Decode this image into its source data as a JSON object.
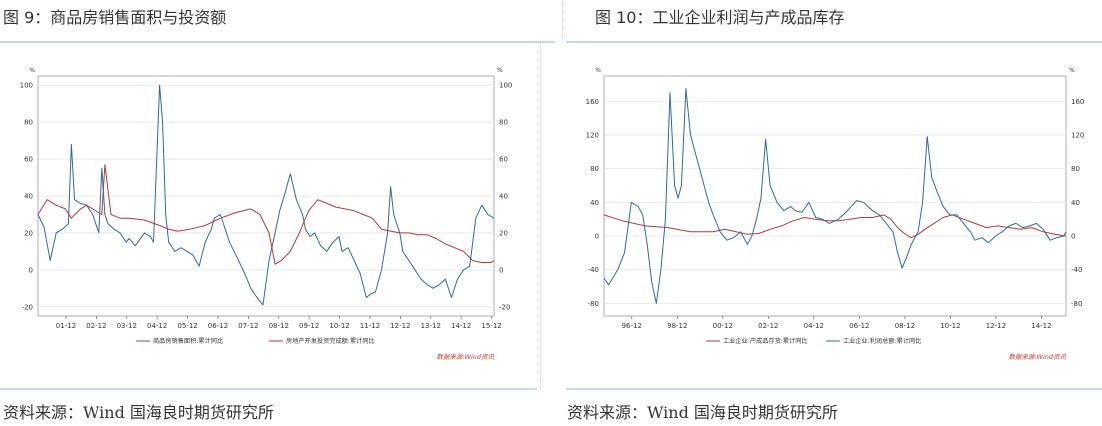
{
  "panels": [
    {
      "title": "图 9：商品房销售面积与投资额",
      "source": "资料来源：Wind 国海良时期货研究所"
    },
    {
      "title": "图 10：工业企业利润与产成品库存",
      "source": "资料来源：Wind 国海良时期货研究所"
    }
  ],
  "chart_data": [
    {
      "type": "line",
      "unit_left": "%",
      "unit_right": "%",
      "xlim": [
        2001.0,
        2016.0
      ],
      "ylim": [
        -25,
        105
      ],
      "yticks": [
        -20,
        0,
        20,
        40,
        60,
        80,
        100
      ],
      "xtick_labels": [
        "01-12",
        "02-12",
        "03-12",
        "04-12",
        "05-12",
        "06-12",
        "07-12",
        "08-12",
        "09-12",
        "10-12",
        "11-12",
        "12-12",
        "13-12",
        "14-12",
        "15-12"
      ],
      "xtick_values": [
        2001.92,
        2002.92,
        2003.92,
        2004.92,
        2005.92,
        2006.92,
        2007.92,
        2008.92,
        2009.92,
        2010.92,
        2011.92,
        2012.92,
        2013.92,
        2014.92,
        2015.92
      ],
      "legend_position": "bottom",
      "watermark": "数据来源:Wind资讯",
      "series": [
        {
          "name": "商品房销售面积:累计同比",
          "color": "#2e6d8e",
          "x": [
            2001.0,
            2001.2,
            2001.4,
            2001.6,
            2001.8,
            2002.0,
            2002.1,
            2002.2,
            2002.4,
            2002.6,
            2002.8,
            2003.0,
            2003.1,
            2003.2,
            2003.3,
            2003.5,
            2003.7,
            2003.9,
            2004.0,
            2004.2,
            2004.5,
            2004.7,
            2004.8,
            2005.0,
            2005.1,
            2005.2,
            2005.3,
            2005.5,
            2005.7,
            2005.9,
            2006.1,
            2006.3,
            2006.5,
            2006.7,
            2006.8,
            2007.0,
            2007.3,
            2007.6,
            2007.8,
            2008.0,
            2008.2,
            2008.4,
            2008.6,
            2008.8,
            2008.95,
            2009.1,
            2009.3,
            2009.5,
            2009.7,
            2009.8,
            2009.95,
            2010.1,
            2010.3,
            2010.5,
            2010.7,
            2010.9,
            2011.0,
            2011.2,
            2011.4,
            2011.6,
            2011.8,
            2011.95,
            2012.1,
            2012.3,
            2012.5,
            2012.6,
            2012.7,
            2012.8,
            2012.9,
            2013.0,
            2013.2,
            2013.4,
            2013.6,
            2013.8,
            2014.0,
            2014.2,
            2014.4,
            2014.6,
            2014.8,
            2015.0,
            2015.2,
            2015.4,
            2015.6,
            2015.8,
            2016.0
          ],
          "y": [
            30,
            23,
            5,
            20,
            22,
            25,
            68,
            38,
            36,
            35,
            30,
            20,
            55,
            30,
            25,
            22,
            20,
            15,
            17,
            13,
            20,
            18,
            15,
            100,
            80,
            30,
            15,
            10,
            12,
            10,
            8,
            2,
            15,
            22,
            28,
            30,
            15,
            5,
            -2,
            -10,
            -15,
            -19,
            5,
            20,
            32,
            40,
            52,
            38,
            30,
            22,
            18,
            20,
            13,
            10,
            15,
            18,
            10,
            12,
            5,
            -2,
            -15,
            -13,
            -12,
            0,
            20,
            45,
            30,
            25,
            20,
            10,
            5,
            0,
            -5,
            -8,
            -10,
            -8,
            -5,
            -15,
            -5,
            0,
            2,
            28,
            35,
            30,
            28
          ]
        },
        {
          "name": "房地产开发投资完成额:累计同比",
          "color": "#b23a3a",
          "x": [
            2001.0,
            2001.3,
            2001.6,
            2001.9,
            2002.1,
            2002.4,
            2002.6,
            2002.9,
            2003.1,
            2003.2,
            2003.4,
            2003.7,
            2004.0,
            2004.5,
            2005.0,
            2005.3,
            2005.6,
            2006.0,
            2006.5,
            2007.0,
            2007.5,
            2008.0,
            2008.3,
            2008.6,
            2008.8,
            2009.0,
            2009.3,
            2009.6,
            2009.9,
            2010.2,
            2010.5,
            2010.8,
            2011.1,
            2011.4,
            2011.7,
            2012.0,
            2012.3,
            2012.6,
            2012.9,
            2013.2,
            2013.5,
            2013.8,
            2014.1,
            2014.4,
            2014.7,
            2015.0,
            2015.3,
            2015.6,
            2015.9,
            2016.0
          ],
          "y": [
            30,
            38,
            35,
            33,
            28,
            33,
            35,
            32,
            30,
            57,
            30,
            28,
            28,
            27,
            24,
            22,
            21,
            22,
            24,
            28,
            31,
            33,
            30,
            20,
            3,
            5,
            10,
            20,
            32,
            38,
            36,
            34,
            33,
            32,
            30,
            28,
            22,
            21,
            20,
            20,
            19,
            19,
            17,
            14,
            12,
            10,
            5,
            4,
            4,
            5
          ]
        }
      ]
    },
    {
      "type": "line",
      "unit_left": "%",
      "unit_right": "%",
      "xlim": [
        1995.7,
        2016.0
      ],
      "ylim": [
        -95,
        190
      ],
      "yticks": [
        -80,
        -40,
        0,
        40,
        80,
        120,
        160
      ],
      "xtick_labels": [
        "96-12",
        "98-12",
        "00-12",
        "02-12",
        "04-12",
        "06-12",
        "08-12",
        "10-12",
        "12-12",
        "14-12"
      ],
      "xtick_values": [
        1996.92,
        1998.92,
        2000.92,
        2002.92,
        2004.92,
        2006.92,
        2008.92,
        2010.92,
        2012.92,
        2014.92
      ],
      "legend_position": "bottom",
      "watermark": "数据来源:Wind资讯",
      "series": [
        {
          "name": "工业企业:产成品存货:累计同比",
          "color": "#b23a3a",
          "x": [
            1995.7,
            1996.5,
            1997.5,
            1998.5,
            1999.5,
            2000.5,
            2001.0,
            2001.5,
            2002.0,
            2002.5,
            2003.0,
            2003.5,
            2004.0,
            2004.5,
            2005.0,
            2005.5,
            2006.0,
            2006.5,
            2007.0,
            2007.5,
            2008.0,
            2008.3,
            2008.6,
            2008.9,
            2009.2,
            2009.5,
            2009.8,
            2010.2,
            2010.6,
            2011.0,
            2011.5,
            2012.0,
            2012.5,
            2013.0,
            2013.5,
            2014.0,
            2014.5,
            2015.0,
            2015.5,
            2016.0
          ],
          "y": [
            25,
            18,
            12,
            10,
            5,
            5,
            8,
            5,
            2,
            3,
            8,
            12,
            18,
            22,
            20,
            18,
            18,
            20,
            22,
            22,
            25,
            20,
            10,
            3,
            -2,
            2,
            8,
            15,
            22,
            25,
            20,
            15,
            10,
            12,
            10,
            8,
            10,
            5,
            2,
            0
          ]
        },
        {
          "name": "工业企业:利润总额:累计同比",
          "color": "#2e6d8e",
          "x": [
            1995.7,
            1995.9,
            1996.3,
            1996.6,
            1996.9,
            1997.2,
            1997.4,
            1997.6,
            1997.8,
            1998.0,
            1998.2,
            1998.4,
            1998.6,
            1998.8,
            1998.95,
            1999.1,
            1999.3,
            1999.5,
            1999.7,
            1999.9,
            2000.1,
            2000.3,
            2000.5,
            2000.8,
            2001.1,
            2001.4,
            2001.7,
            2002.0,
            2002.2,
            2002.4,
            2002.6,
            2002.8,
            2003.0,
            2003.3,
            2003.6,
            2003.9,
            2004.1,
            2004.4,
            2004.7,
            2005.0,
            2005.3,
            2005.6,
            2006.0,
            2006.4,
            2006.8,
            2007.1,
            2007.5,
            2007.8,
            2008.1,
            2008.4,
            2008.6,
            2008.8,
            2009.0,
            2009.2,
            2009.5,
            2009.7,
            2009.9,
            2010.1,
            2010.3,
            2010.6,
            2010.9,
            2011.2,
            2011.5,
            2011.8,
            2012.0,
            2012.3,
            2012.6,
            2012.9,
            2013.2,
            2013.5,
            2013.8,
            2014.1,
            2014.4,
            2014.7,
            2015.0,
            2015.3,
            2015.6,
            2015.9,
            2016.0
          ],
          "y": [
            -50,
            -58,
            -40,
            -20,
            40,
            35,
            25,
            -10,
            -55,
            -80,
            -40,
            20,
            170,
            60,
            45,
            60,
            175,
            120,
            100,
            80,
            60,
            40,
            25,
            5,
            -5,
            -2,
            5,
            -10,
            0,
            20,
            45,
            115,
            60,
            40,
            30,
            35,
            30,
            28,
            40,
            22,
            20,
            15,
            20,
            30,
            42,
            40,
            30,
            25,
            15,
            5,
            -20,
            -38,
            -25,
            -10,
            5,
            40,
            118,
            70,
            55,
            35,
            25,
            25,
            15,
            5,
            -5,
            -2,
            -8,
            0,
            5,
            12,
            15,
            10,
            12,
            15,
            8,
            -5,
            -2,
            0,
            5
          ]
        }
      ]
    }
  ]
}
